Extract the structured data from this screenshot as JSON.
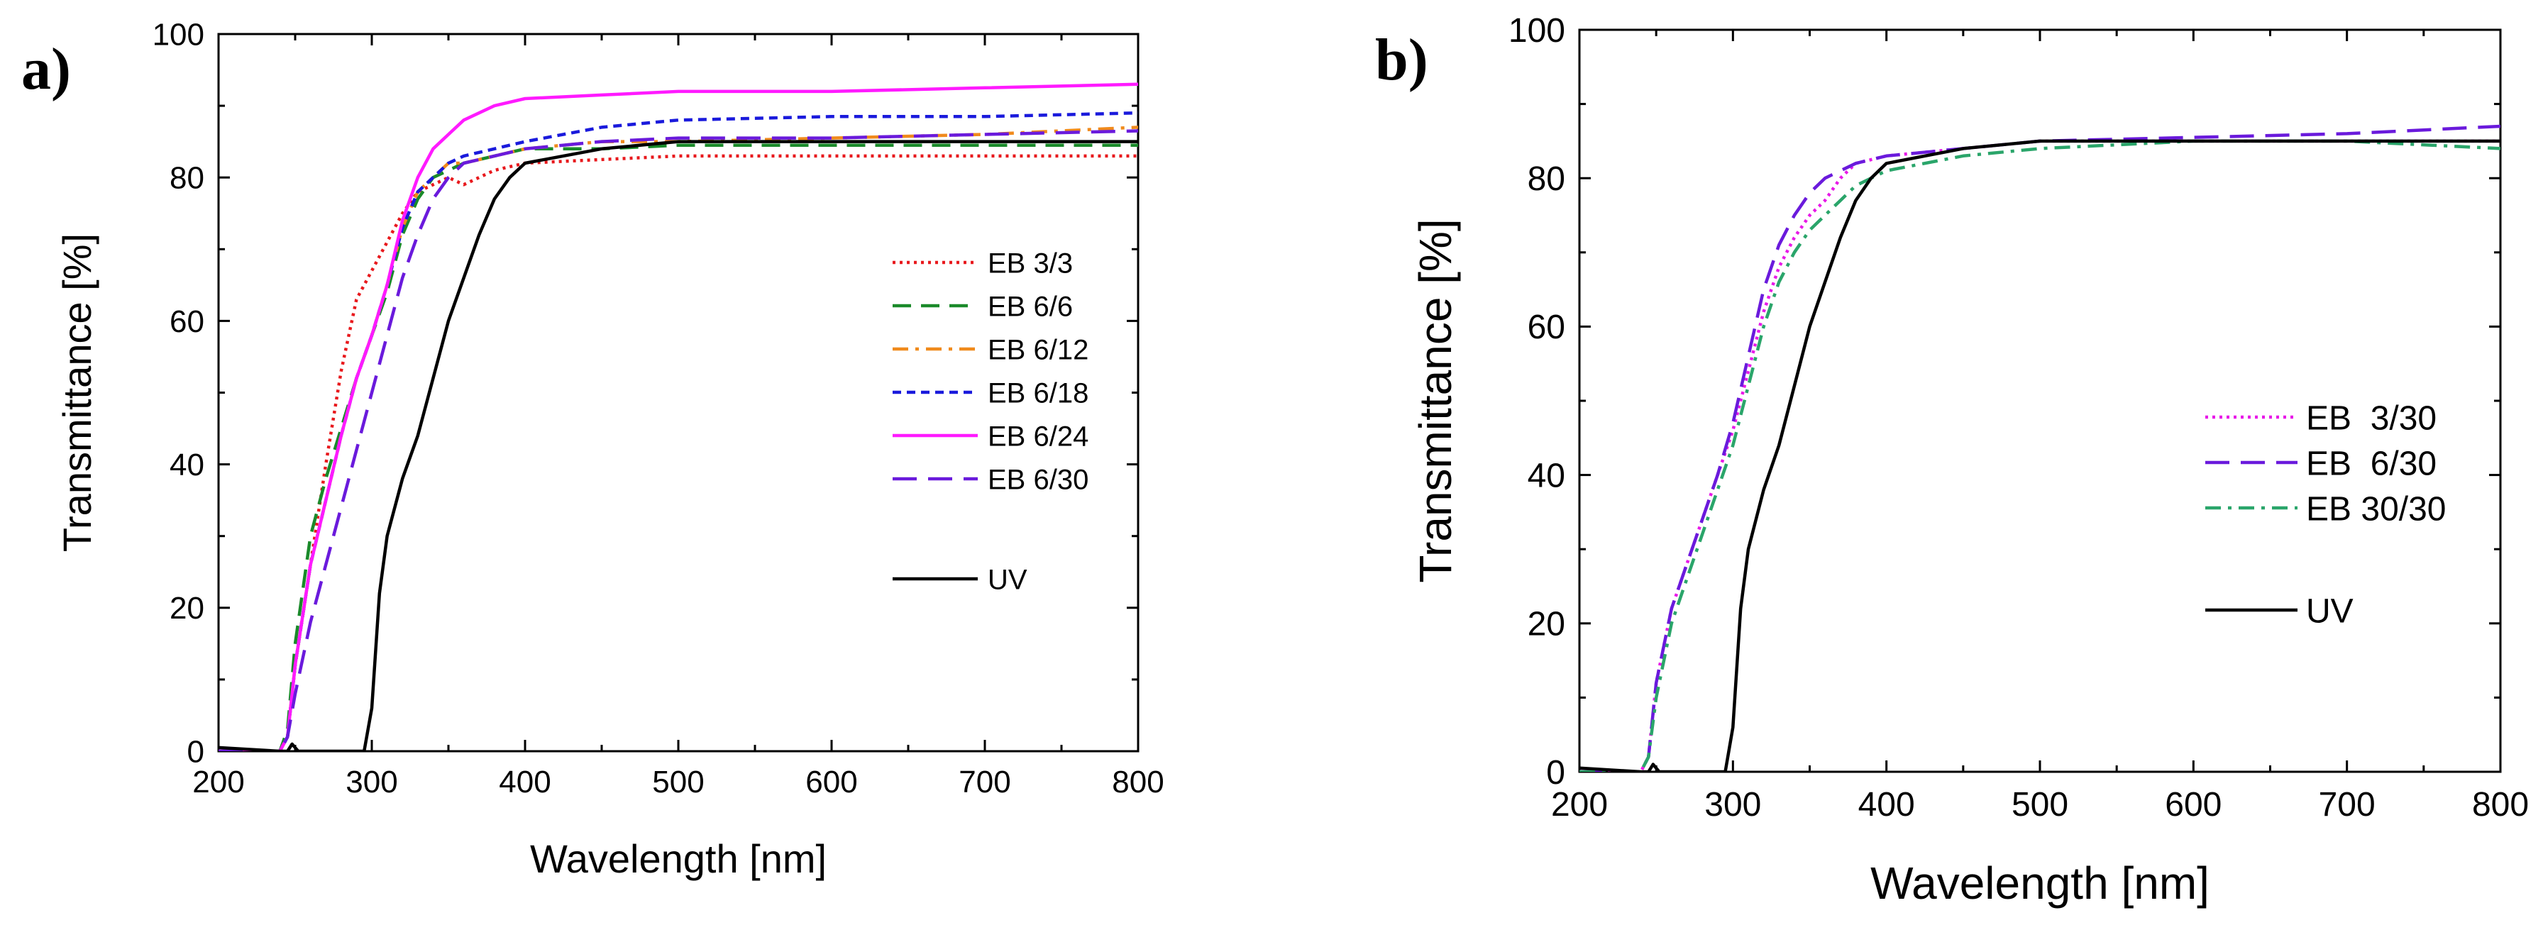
{
  "chart_data": [
    {
      "panel_label": "a)",
      "type": "line",
      "xlabel": "Wavelength [nm]",
      "ylabel": "Transmittance [%]",
      "xlim": [
        200,
        800
      ],
      "ylim": [
        0,
        100
      ],
      "xticks": [
        200,
        300,
        400,
        500,
        600,
        700,
        800
      ],
      "yticks": [
        0,
        20,
        40,
        60,
        80,
        100
      ],
      "legend_position": "right-middle",
      "series": [
        {
          "name": "EB 3/3",
          "color": "#e8191d",
          "dash": "dotted",
          "x": [
            200,
            240,
            245,
            250,
            260,
            270,
            280,
            290,
            300,
            310,
            320,
            330,
            340,
            350,
            360,
            370,
            380,
            400,
            450,
            500,
            600,
            700,
            800
          ],
          "y": [
            0,
            0,
            2,
            12,
            26,
            40,
            53,
            63,
            67,
            71,
            75,
            78,
            79,
            80,
            79,
            80,
            81,
            82,
            82.5,
            83,
            83,
            83,
            83
          ]
        },
        {
          "name": "EB 6/6",
          "color": "#1a8a2a",
          "dash": "dashed",
          "x": [
            200,
            240,
            245,
            250,
            260,
            270,
            280,
            290,
            300,
            310,
            320,
            330,
            340,
            350,
            360,
            380,
            400,
            450,
            500,
            600,
            700,
            800
          ],
          "y": [
            0,
            0,
            3,
            15,
            30,
            38,
            45,
            52,
            58,
            64,
            72,
            77,
            80,
            81,
            82,
            83,
            84,
            84,
            84.5,
            84.5,
            84.5,
            84.5
          ]
        },
        {
          "name": "EB 6/12",
          "color": "#f08a1c",
          "dash": "dashdot",
          "x": [
            200,
            240,
            245,
            250,
            260,
            270,
            280,
            290,
            300,
            310,
            320,
            330,
            340,
            350,
            360,
            380,
            400,
            450,
            500,
            600,
            700,
            800
          ],
          "y": [
            0,
            0,
            2,
            12,
            26,
            35,
            44,
            52,
            58,
            65,
            73,
            78,
            80,
            82,
            82,
            83,
            84,
            85,
            85,
            85.5,
            86,
            87
          ]
        },
        {
          "name": "EB 6/18",
          "color": "#1a1adc",
          "dash": "shortdash",
          "x": [
            200,
            240,
            245,
            250,
            260,
            270,
            280,
            290,
            300,
            310,
            320,
            330,
            340,
            350,
            360,
            380,
            400,
            450,
            500,
            600,
            700,
            800
          ],
          "y": [
            0,
            0,
            2,
            12,
            26,
            35,
            44,
            52,
            58,
            65,
            73,
            78,
            80,
            82,
            83,
            84,
            85,
            87,
            88,
            88.5,
            88.5,
            89
          ]
        },
        {
          "name": "EB 6/24",
          "color": "#ff1aff",
          "dash": "solid",
          "x": [
            200,
            240,
            245,
            250,
            260,
            270,
            280,
            290,
            300,
            310,
            320,
            330,
            340,
            350,
            360,
            370,
            380,
            400,
            450,
            500,
            600,
            700,
            800
          ],
          "y": [
            0,
            0,
            2,
            12,
            26,
            35,
            44,
            52,
            58,
            65,
            74,
            80,
            84,
            86,
            88,
            89,
            90,
            91,
            91.5,
            92,
            92,
            92.5,
            93
          ]
        },
        {
          "name": "EB 6/30",
          "color": "#6a1adc",
          "dash": "longdash",
          "x": [
            200,
            240,
            245,
            250,
            260,
            270,
            280,
            290,
            300,
            310,
            320,
            330,
            340,
            350,
            360,
            380,
            400,
            450,
            500,
            600,
            700,
            800
          ],
          "y": [
            0,
            0,
            2,
            8,
            18,
            26,
            34,
            42,
            50,
            58,
            66,
            72,
            77,
            80,
            82,
            83,
            84,
            85,
            85.5,
            85.5,
            86,
            86.5
          ]
        },
        {
          "name": "UV",
          "color": "#000000",
          "dash": "solid",
          "x": [
            200,
            240,
            245,
            248,
            252,
            260,
            270,
            280,
            290,
            295,
            300,
            305,
            310,
            320,
            330,
            340,
            350,
            360,
            370,
            380,
            390,
            400,
            450,
            500,
            600,
            700,
            800
          ],
          "y": [
            0.5,
            0,
            0,
            1,
            0,
            0,
            0,
            0,
            0,
            0,
            6,
            22,
            30,
            38,
            44,
            52,
            60,
            66,
            72,
            77,
            80,
            82,
            84,
            85,
            85,
            85,
            85
          ]
        }
      ]
    },
    {
      "panel_label": "b)",
      "type": "line",
      "xlabel": "Wavelength [nm]",
      "ylabel": "Transmittance [%]",
      "xlim": [
        200,
        800
      ],
      "ylim": [
        0,
        100
      ],
      "xticks": [
        200,
        300,
        400,
        500,
        600,
        700,
        800
      ],
      "yticks": [
        0,
        20,
        40,
        60,
        80,
        100
      ],
      "legend_position": "right-middle",
      "series": [
        {
          "name": "EB  3/30",
          "color": "#e81ae8",
          "dash": "dotted",
          "x": [
            200,
            240,
            245,
            250,
            260,
            270,
            280,
            290,
            300,
            310,
            320,
            330,
            340,
            350,
            360,
            370,
            380,
            400,
            450,
            500,
            600,
            700,
            800
          ],
          "y": [
            0,
            0,
            2,
            12,
            22,
            28,
            34,
            40,
            46,
            54,
            62,
            68,
            72,
            75,
            77,
            80,
            82,
            83,
            84,
            85,
            85,
            85,
            85
          ]
        },
        {
          "name": "EB  6/30",
          "color": "#6a1adc",
          "dash": "longdash",
          "x": [
            200,
            240,
            245,
            250,
            260,
            270,
            280,
            290,
            300,
            310,
            320,
            330,
            340,
            350,
            360,
            370,
            380,
            400,
            450,
            500,
            600,
            700,
            800
          ],
          "y": [
            0,
            0,
            2,
            12,
            22,
            28,
            34,
            40,
            47,
            56,
            65,
            71,
            75,
            78,
            80,
            81,
            82,
            83,
            84,
            85,
            85.5,
            86,
            87
          ]
        },
        {
          "name": "EB 30/30",
          "color": "#2aa56a",
          "dash": "dashdot",
          "x": [
            200,
            240,
            245,
            250,
            260,
            270,
            280,
            290,
            300,
            310,
            320,
            330,
            340,
            350,
            360,
            370,
            380,
            400,
            450,
            500,
            600,
            700,
            800
          ],
          "y": [
            0,
            0,
            2,
            10,
            20,
            26,
            32,
            38,
            44,
            52,
            60,
            66,
            70,
            73,
            75,
            77,
            79,
            81,
            83,
            84,
            85,
            85,
            84
          ]
        },
        {
          "name": "UV",
          "color": "#000000",
          "dash": "solid",
          "x": [
            200,
            240,
            245,
            248,
            252,
            260,
            270,
            280,
            290,
            295,
            300,
            305,
            310,
            320,
            330,
            340,
            350,
            360,
            370,
            380,
            390,
            400,
            450,
            500,
            600,
            700,
            800
          ],
          "y": [
            0.5,
            0,
            0,
            1,
            0,
            0,
            0,
            0,
            0,
            0,
            6,
            22,
            30,
            38,
            44,
            52,
            60,
            66,
            72,
            77,
            80,
            82,
            84,
            85,
            85,
            85,
            85
          ]
        }
      ]
    }
  ]
}
